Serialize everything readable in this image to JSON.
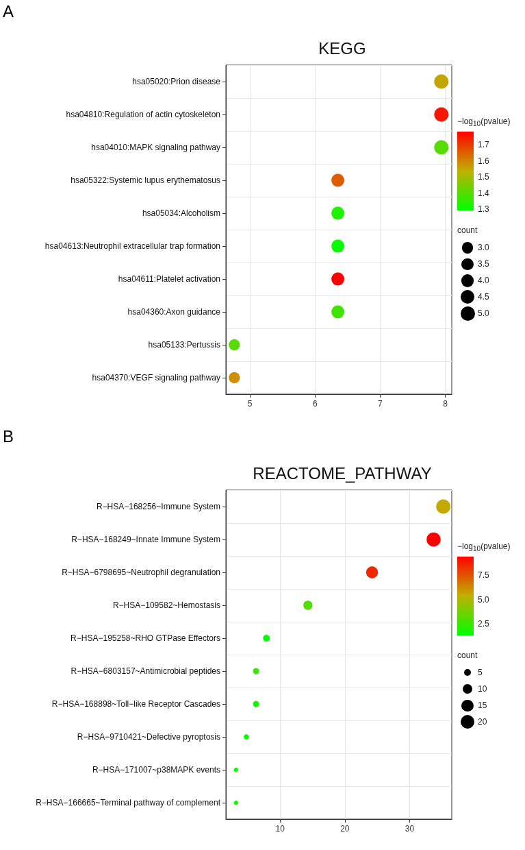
{
  "chart_data": [
    {
      "type": "bubble",
      "title": "KEGG",
      "annotations": [
        "A"
      ],
      "orientation": "horizontal",
      "grid": true,
      "categories": [
        "hsa05020:Prion disease",
        "hsa04810:Regulation of actin cytoskeleton",
        "hsa04010:MAPK signaling pathway",
        "hsa05322:Systemic lupus erythematosus",
        "hsa05034:Alcoholism",
        "hsa04613:Neutrophil extracellular trap formation",
        "hsa04611:Platelet activation",
        "hsa04360:Axon guidance",
        "hsa05133:Pertussis",
        "hsa04370:VEGF signaling pathway"
      ],
      "values": [
        7.94,
        7.94,
        7.94,
        6.35,
        6.35,
        6.35,
        6.35,
        6.35,
        4.76,
        4.76
      ],
      "sizes": [
        5,
        5,
        5,
        4,
        4,
        4,
        4,
        4,
        3,
        3
      ],
      "cvalues": [
        1.55,
        1.75,
        1.4,
        1.65,
        1.33,
        1.3,
        1.78,
        1.37,
        1.4,
        1.58
      ],
      "xlim": [
        4.63,
        8.1
      ],
      "xticks": [
        5,
        6,
        7,
        8
      ],
      "clabel": "−log$_{10}$(pvalue)",
      "clim": [
        1.29,
        1.78
      ],
      "cticks": [
        1.3,
        1.4,
        1.5,
        1.6,
        1.7
      ],
      "legend_title": "count",
      "size_legend": [
        {
          "value": 3,
          "label": "3.0"
        },
        {
          "value": 3.5,
          "label": "3.5"
        },
        {
          "value": 4,
          "label": "4.0"
        },
        {
          "value": 4.5,
          "label": "4.5"
        },
        {
          "value": 5,
          "label": "5.0"
        }
      ]
    },
    {
      "type": "bubble",
      "title": "REACTOME_PATHWAY",
      "annotations": [
        "B"
      ],
      "orientation": "horizontal",
      "grid": true,
      "categories": [
        "R−HSA−168256~Immune System",
        "R−HSA−168249~Innate Immune System",
        "R−HSA−6798695~Neutrophil degranulation",
        "R−HSA−109582~Hemostasis",
        "R−HSA−195258~RHO GTPase Effectors",
        "R−HSA−6803157~Antimicrobial peptides",
        "R−HSA−168898~Toll−like Receptor Cascades",
        "R−HSA−9710421~Defective pyroptosis",
        "R−HSA−171007~p38MAPK events",
        "R−HSA−166665~Terminal pathway of complement"
      ],
      "values": [
        35.2,
        33.7,
        24.2,
        14.3,
        7.9,
        6.3,
        6.3,
        4.8,
        3.2,
        3.2
      ],
      "sizes": [
        22,
        21,
        15,
        9,
        5,
        4,
        4,
        3,
        2,
        2
      ],
      "cvalues": [
        5.5,
        9.4,
        8.5,
        3,
        1.5,
        2.5,
        1.7,
        1.5,
        1.4,
        1.6
      ],
      "xlim": [
        1.64,
        36.5
      ],
      "xticks": [
        10,
        20,
        30
      ],
      "clabel": "−log$_{10}$(pvalue)",
      "clim": [
        1.27,
        9.4
      ],
      "cticks": [
        2.5,
        {
          "value": 5,
          "label": "5.0"
        },
        7.5
      ],
      "legend_title": "count",
      "size_legend": [
        5,
        10,
        15,
        20
      ]
    }
  ]
}
